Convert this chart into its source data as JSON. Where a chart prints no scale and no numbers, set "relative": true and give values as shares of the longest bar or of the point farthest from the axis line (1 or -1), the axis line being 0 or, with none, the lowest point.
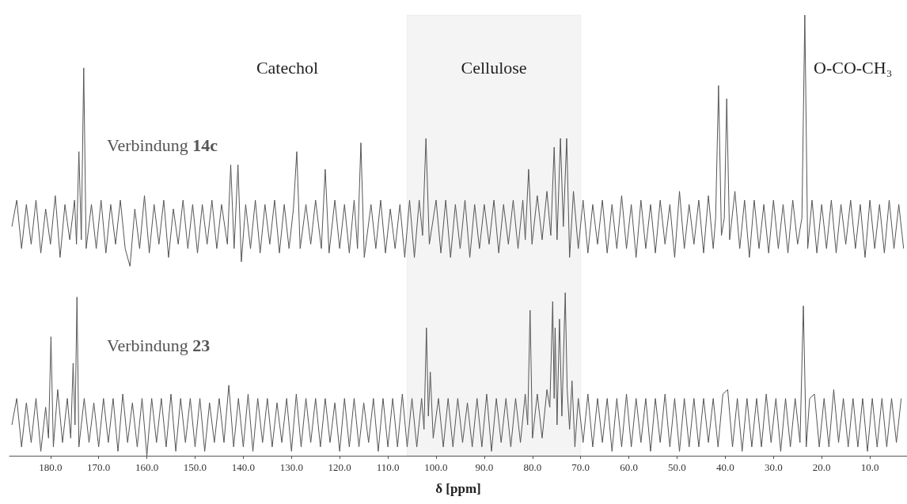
{
  "chart_data": {
    "type": "line",
    "relative": true,
    "xlabel": "δ [ppm]",
    "xlim": [
      188.5,
      2.3
    ],
    "grid": false,
    "legend": false,
    "marker": "none",
    "line_style": "solid",
    "xticks": [
      {
        "value": 180,
        "label": "180.0"
      },
      {
        "value": 170,
        "label": "170.0"
      },
      {
        "value": 160,
        "label": "160.0"
      },
      {
        "value": 150,
        "label": "150.0"
      },
      {
        "value": 140,
        "label": "140.0"
      },
      {
        "value": 130,
        "label": "130.0"
      },
      {
        "value": 120,
        "label": "120.0"
      },
      {
        "value": 110,
        "label": "110.0"
      },
      {
        "value": 100,
        "label": "100.0"
      },
      {
        "value": 90,
        "label": "90.0"
      },
      {
        "value": 80,
        "label": "80.0"
      },
      {
        "value": 70,
        "label": "70.0"
      },
      {
        "value": 60,
        "label": "60.0"
      },
      {
        "value": 50,
        "label": "50.0"
      },
      {
        "value": 40,
        "label": "40.0"
      },
      {
        "value": 30,
        "label": "30.0"
      },
      {
        "value": 20,
        "label": "20.0"
      },
      {
        "value": 10,
        "label": "10.0"
      }
    ],
    "annotations": [
      "Catechol",
      "O-CO-CH₃"
    ],
    "bands": [
      {
        "axis": "x",
        "from": 106,
        "to": 70,
        "label": "Cellulose",
        "color": "#444444"
      }
    ],
    "series": [
      {
        "name": "Verbindung 14c",
        "color": "#555555",
        "x": [
          188.0,
          187.0,
          186.0,
          185.0,
          184.0,
          183.0,
          182.0,
          181.0,
          180.0,
          179.0,
          178.0,
          177.0,
          176.0,
          175.0,
          174.6,
          174.1,
          173.6,
          173.1,
          172.6,
          171.5,
          170.5,
          169.5,
          168.5,
          167.5,
          166.5,
          165.5,
          164.5,
          163.5,
          162.5,
          161.5,
          160.5,
          159.5,
          158.5,
          157.5,
          156.5,
          155.5,
          154.5,
          153.5,
          152.5,
          151.5,
          150.5,
          149.5,
          148.5,
          147.5,
          146.5,
          145.5,
          144.5,
          143.3,
          142.6,
          141.9,
          141.1,
          140.4,
          139.5,
          138.5,
          137.5,
          136.5,
          135.5,
          134.5,
          133.5,
          132.5,
          131.5,
          130.5,
          129.6,
          128.9,
          128.2,
          127.0,
          126.0,
          125.0,
          123.8,
          123.0,
          122.2,
          121.0,
          120.0,
          119.0,
          118.0,
          117.0,
          116.3,
          115.6,
          114.9,
          113.5,
          112.5,
          111.5,
          110.5,
          109.5,
          108.5,
          107.5,
          106.5,
          105.5,
          104.5,
          103.5,
          102.8,
          102.1,
          101.4,
          100.0,
          99.0,
          98.0,
          97.0,
          96.0,
          95.0,
          94.0,
          93.0,
          92.0,
          91.0,
          90.0,
          89.0,
          88.0,
          87.0,
          86.0,
          85.0,
          84.0,
          83.0,
          82.0,
          81.5,
          80.8,
          80.1,
          79.0,
          78.0,
          77.0,
          76.2,
          75.5,
          74.9,
          74.2,
          73.6,
          72.9,
          72.3,
          71.5,
          70.5,
          69.5,
          68.5,
          67.5,
          66.5,
          65.5,
          64.5,
          63.5,
          62.5,
          61.5,
          60.5,
          59.5,
          58.5,
          57.5,
          56.5,
          55.5,
          54.5,
          53.5,
          52.5,
          51.5,
          50.5,
          49.5,
          48.5,
          47.5,
          46.5,
          45.5,
          44.5,
          43.5,
          42.5,
          42.0,
          41.4,
          40.8,
          40.2,
          39.7,
          39.1,
          38.0,
          37.0,
          36.0,
          35.0,
          34.0,
          33.0,
          32.0,
          31.0,
          30.0,
          29.0,
          28.0,
          27.0,
          26.0,
          25.0,
          24.1,
          23.5,
          22.9,
          22.0,
          21.0,
          20.0,
          19.0,
          18.0,
          17.0,
          16.0,
          15.0,
          14.0,
          13.0,
          12.0,
          11.0,
          10.0,
          9.0,
          8.0,
          7.0,
          6.0,
          5.0,
          4.0,
          3.0
        ],
        "values": [
          0.52,
          0.58,
          0.47,
          0.57,
          0.48,
          0.58,
          0.46,
          0.56,
          0.48,
          0.59,
          0.45,
          0.57,
          0.49,
          0.58,
          0.48,
          0.69,
          0.49,
          0.88,
          0.47,
          0.57,
          0.47,
          0.58,
          0.46,
          0.57,
          0.48,
          0.58,
          0.47,
          0.43,
          0.56,
          0.47,
          0.59,
          0.46,
          0.57,
          0.48,
          0.58,
          0.45,
          0.56,
          0.48,
          0.58,
          0.47,
          0.57,
          0.46,
          0.57,
          0.48,
          0.58,
          0.47,
          0.57,
          0.48,
          0.66,
          0.47,
          0.66,
          0.44,
          0.57,
          0.47,
          0.58,
          0.46,
          0.57,
          0.48,
          0.58,
          0.46,
          0.57,
          0.47,
          0.56,
          0.69,
          0.47,
          0.57,
          0.48,
          0.58,
          0.47,
          0.65,
          0.46,
          0.58,
          0.47,
          0.57,
          0.46,
          0.58,
          0.47,
          0.71,
          0.45,
          0.57,
          0.47,
          0.58,
          0.46,
          0.56,
          0.47,
          0.57,
          0.45,
          0.58,
          0.45,
          0.58,
          0.5,
          0.72,
          0.48,
          0.58,
          0.46,
          0.58,
          0.45,
          0.57,
          0.47,
          0.58,
          0.45,
          0.57,
          0.47,
          0.57,
          0.48,
          0.58,
          0.46,
          0.57,
          0.48,
          0.58,
          0.47,
          0.58,
          0.49,
          0.65,
          0.48,
          0.59,
          0.49,
          0.6,
          0.5,
          0.7,
          0.49,
          0.72,
          0.52,
          0.72,
          0.45,
          0.6,
          0.47,
          0.58,
          0.46,
          0.57,
          0.48,
          0.58,
          0.46,
          0.57,
          0.47,
          0.59,
          0.47,
          0.57,
          0.45,
          0.58,
          0.47,
          0.57,
          0.46,
          0.58,
          0.48,
          0.57,
          0.45,
          0.6,
          0.47,
          0.57,
          0.48,
          0.58,
          0.46,
          0.59,
          0.47,
          0.54,
          0.84,
          0.5,
          0.54,
          0.81,
          0.49,
          0.6,
          0.47,
          0.58,
          0.45,
          0.58,
          0.47,
          0.57,
          0.46,
          0.58,
          0.47,
          0.57,
          0.46,
          0.58,
          0.48,
          0.54,
          1.0,
          0.47,
          0.58,
          0.46,
          0.57,
          0.47,
          0.58,
          0.46,
          0.57,
          0.48,
          0.58,
          0.47,
          0.57,
          0.45,
          0.58,
          0.47,
          0.57,
          0.46,
          0.58,
          0.47,
          0.57,
          0.47
        ]
      },
      {
        "name": "Verbindung 23",
        "color": "#555555",
        "x": [
          188.0,
          187.0,
          186.0,
          185.0,
          184.0,
          183.0,
          182.0,
          181.0,
          180.4,
          179.9,
          179.4,
          178.5,
          177.5,
          176.5,
          175.8,
          175.3,
          174.9,
          174.5,
          174.1,
          173.0,
          172.0,
          171.0,
          170.0,
          169.0,
          168.0,
          167.0,
          166.0,
          165.0,
          164.0,
          163.0,
          162.0,
          161.0,
          160.0,
          159.0,
          158.0,
          157.0,
          156.0,
          155.0,
          154.0,
          153.0,
          152.0,
          151.0,
          150.0,
          149.0,
          148.0,
          147.0,
          146.0,
          145.0,
          144.0,
          143.0,
          142.0,
          141.0,
          140.0,
          139.0,
          138.0,
          137.0,
          136.0,
          135.0,
          134.0,
          133.0,
          132.0,
          131.0,
          130.0,
          129.0,
          128.0,
          127.0,
          126.0,
          125.0,
          124.0,
          123.0,
          122.0,
          121.0,
          120.0,
          119.0,
          118.0,
          117.0,
          116.0,
          115.0,
          114.0,
          113.0,
          112.0,
          111.0,
          110.0,
          109.0,
          108.0,
          107.0,
          106.0,
          105.0,
          104.0,
          103.0,
          102.5,
          102.0,
          101.6,
          101.2,
          100.6,
          99.5,
          98.5,
          97.5,
          96.5,
          95.5,
          94.5,
          93.5,
          92.5,
          91.5,
          90.5,
          89.5,
          88.5,
          87.5,
          86.5,
          85.5,
          84.5,
          83.5,
          82.5,
          81.5,
          81.0,
          80.5,
          80.0,
          79.0,
          78.0,
          77.0,
          76.4,
          75.8,
          75.5,
          75.3,
          74.9,
          74.4,
          73.9,
          73.2,
          72.8,
          72.3,
          71.8,
          71.2,
          70.5,
          69.5,
          68.5,
          67.5,
          66.5,
          65.5,
          64.5,
          63.5,
          62.5,
          61.5,
          60.5,
          59.5,
          58.5,
          57.5,
          56.5,
          55.5,
          54.5,
          53.5,
          52.5,
          51.5,
          50.5,
          49.5,
          48.5,
          47.5,
          46.5,
          45.5,
          44.5,
          43.5,
          42.5,
          41.5,
          40.5,
          39.5,
          38.5,
          37.5,
          36.5,
          35.5,
          34.5,
          33.5,
          32.5,
          31.5,
          30.5,
          29.5,
          28.5,
          27.5,
          26.5,
          25.5,
          24.5,
          23.8,
          23.2,
          22.5,
          21.5,
          20.5,
          19.5,
          18.5,
          17.5,
          16.5,
          15.5,
          14.5,
          13.5,
          12.5,
          11.5,
          10.5,
          9.5,
          8.5,
          7.5,
          6.5,
          5.5,
          4.5,
          3.5
        ],
        "values": [
          0.07,
          0.13,
          0.02,
          0.12,
          0.03,
          0.13,
          0.01,
          0.11,
          0.04,
          0.27,
          0.02,
          0.15,
          0.03,
          0.13,
          0.04,
          0.21,
          0.07,
          0.36,
          0.02,
          0.13,
          0.03,
          0.12,
          0.02,
          0.13,
          0.03,
          0.13,
          0.01,
          0.14,
          0.03,
          0.12,
          0.02,
          0.13,
          0,
          0.13,
          0.03,
          0.13,
          0.02,
          0.14,
          0.01,
          0.13,
          0.03,
          0.13,
          0.02,
          0.13,
          0.01,
          0.12,
          0.03,
          0.13,
          0.03,
          0.16,
          0.02,
          0.13,
          0.02,
          0.14,
          0.01,
          0.13,
          0.03,
          0.13,
          0.02,
          0.12,
          0.03,
          0.13,
          0.01,
          0.14,
          0.02,
          0.13,
          0.03,
          0.13,
          0.02,
          0.13,
          0.03,
          0.12,
          0.01,
          0.13,
          0.02,
          0.13,
          0.02,
          0.12,
          0.03,
          0.13,
          0.01,
          0.13,
          0.02,
          0.13,
          0.02,
          0.14,
          0.02,
          0.13,
          0.02,
          0.13,
          0.06,
          0.29,
          0.09,
          0.19,
          0.04,
          0.13,
          0.02,
          0.13,
          0.02,
          0.13,
          0.03,
          0.12,
          0.02,
          0.13,
          0.02,
          0.14,
          0.01,
          0.13,
          0.03,
          0.13,
          0.02,
          0.13,
          0.03,
          0.14,
          0.07,
          0.33,
          0.04,
          0.14,
          0.04,
          0.15,
          0.11,
          0.35,
          0.13,
          0.29,
          0.07,
          0.31,
          0.09,
          0.37,
          0.15,
          0.06,
          0.17,
          0.02,
          0.13,
          0.03,
          0.14,
          0.02,
          0.13,
          0.03,
          0.13,
          0.01,
          0.13,
          0.02,
          0.14,
          0.02,
          0.13,
          0.03,
          0.13,
          0.01,
          0.13,
          0.03,
          0.14,
          0.02,
          0.13,
          0.01,
          0.13,
          0.02,
          0.13,
          0.02,
          0.13,
          0.03,
          0.13,
          0.02,
          0.14,
          0.15,
          0.02,
          0.13,
          0.01,
          0.13,
          0.02,
          0.13,
          0.02,
          0.14,
          0.03,
          0.13,
          0.01,
          0.13,
          0.02,
          0.13,
          0.03,
          0.34,
          0.02,
          0.13,
          0.14,
          0.02,
          0.13,
          0.02,
          0.15,
          0.03,
          0.13,
          0.02,
          0.13,
          0.02,
          0.13,
          0.01,
          0.13,
          0.02,
          0.13,
          0.02,
          0.13,
          0.03,
          0.13
        ]
      }
    ]
  }
}
